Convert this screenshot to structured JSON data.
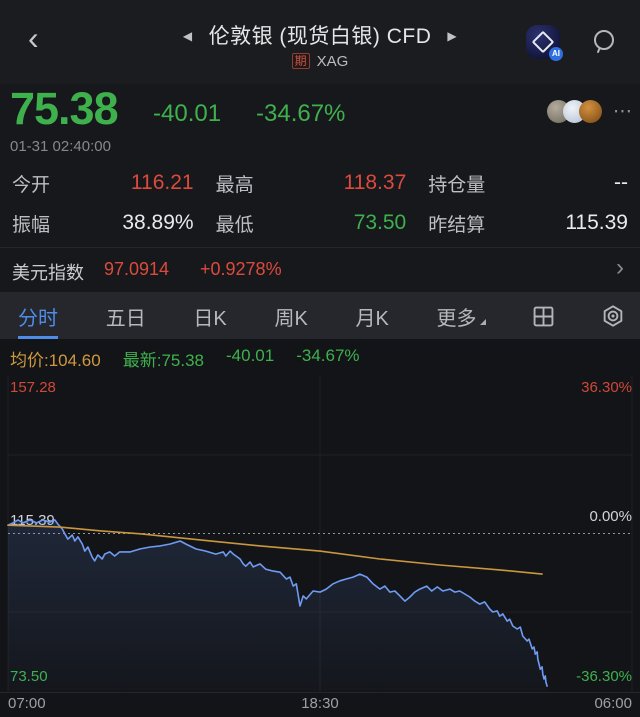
{
  "header": {
    "title": "伦敦银 (现货白银) CFD",
    "badge": "期",
    "symbol": "XAG",
    "ai_badge": "AI"
  },
  "icons": {
    "back": "‹",
    "prev": "◀",
    "next": "▶",
    "more_dots": "⋯",
    "chevron_right": "›"
  },
  "quote": {
    "price": "75.38",
    "change": "-40.01",
    "change_pct": "-34.67%",
    "timestamp": "01-31 02:40:00"
  },
  "stats": [
    {
      "label": "今开",
      "value": "116.21"
    },
    {
      "label": "最高",
      "value": "118.37"
    },
    {
      "label": "持仓量",
      "value": "--"
    },
    {
      "label": "振幅",
      "value": "38.89%"
    },
    {
      "label": "最低",
      "value": "73.50"
    },
    {
      "label": "昨结算",
      "value": "115.39"
    }
  ],
  "usd_index": {
    "label": "美元指数",
    "value": "97.0914",
    "change_pct": "+0.9278%"
  },
  "tabs": [
    {
      "label": "分时",
      "active": true
    },
    {
      "label": "五日",
      "active": false
    },
    {
      "label": "日K",
      "active": false
    },
    {
      "label": "周K",
      "active": false
    },
    {
      "label": "月K",
      "active": false
    },
    {
      "label": "更多",
      "active": false
    }
  ],
  "legend": {
    "avg": "均价:104.60",
    "last": "最新:75.38",
    "change": "-40.01",
    "change_pct": "-34.67%"
  },
  "colors": {
    "up_red": "#dc4a3d",
    "down_green": "#3eb14d",
    "avg_orange": "#cf9a3f",
    "price_line_blue": "#6f9bf3",
    "tab_active_blue": "#4e8ce8"
  },
  "chart_data": {
    "type": "line",
    "ylim": [
      73.5,
      157.28
    ],
    "baseline": 115.39,
    "y_axis_left": [
      "157.28",
      "115.39",
      "73.50"
    ],
    "y_axis_right": [
      "36.30%",
      "0.00%",
      "-36.30%"
    ],
    "x_axis": [
      "07:00",
      "18:30",
      "06:00"
    ],
    "series": [
      {
        "name": "price",
        "color": "#6f9bf3",
        "area": true,
        "points": [
          [
            0.0,
            117.6
          ],
          [
            0.008,
            118.2
          ],
          [
            0.016,
            119.0
          ],
          [
            0.024,
            118.2
          ],
          [
            0.035,
            119.0
          ],
          [
            0.046,
            118.2
          ],
          [
            0.056,
            119.0
          ],
          [
            0.067,
            118.4
          ],
          [
            0.075,
            119.0
          ],
          [
            0.08,
            117.9
          ],
          [
            0.087,
            116.6
          ],
          [
            0.091,
            115.3
          ],
          [
            0.096,
            113.9
          ],
          [
            0.103,
            115.0
          ],
          [
            0.107,
            113.4
          ],
          [
            0.112,
            114.5
          ],
          [
            0.119,
            112.6
          ],
          [
            0.123,
            110.7
          ],
          [
            0.128,
            111.8
          ],
          [
            0.135,
            109.1
          ],
          [
            0.139,
            108.1
          ],
          [
            0.144,
            109.7
          ],
          [
            0.151,
            108.6
          ],
          [
            0.155,
            109.9
          ],
          [
            0.163,
            110.5
          ],
          [
            0.171,
            109.4
          ],
          [
            0.179,
            110.5
          ],
          [
            0.196,
            110.5
          ],
          [
            0.212,
            111.3
          ],
          [
            0.228,
            111.8
          ],
          [
            0.244,
            112.1
          ],
          [
            0.26,
            112.6
          ],
          [
            0.276,
            113.4
          ],
          [
            0.285,
            112.6
          ],
          [
            0.301,
            111.3
          ],
          [
            0.317,
            110.7
          ],
          [
            0.333,
            109.9
          ],
          [
            0.345,
            110.5
          ],
          [
            0.349,
            109.4
          ],
          [
            0.356,
            110.7
          ],
          [
            0.361,
            109.9
          ],
          [
            0.372,
            108.6
          ],
          [
            0.377,
            107.3
          ],
          [
            0.381,
            106.7
          ],
          [
            0.388,
            107.8
          ],
          [
            0.393,
            106.5
          ],
          [
            0.404,
            107.3
          ],
          [
            0.413,
            105.9
          ],
          [
            0.425,
            105.4
          ],
          [
            0.436,
            105.1
          ],
          [
            0.446,
            103.3
          ],
          [
            0.452,
            103.8
          ],
          [
            0.457,
            101.4
          ],
          [
            0.462,
            102.0
          ],
          [
            0.468,
            96.1
          ],
          [
            0.473,
            98.8
          ],
          [
            0.478,
            98.0
          ],
          [
            0.489,
            100.1
          ],
          [
            0.5,
            99.8
          ],
          [
            0.51,
            100.6
          ],
          [
            0.521,
            102.0
          ],
          [
            0.532,
            102.8
          ],
          [
            0.542,
            103.3
          ],
          [
            0.553,
            103.8
          ],
          [
            0.564,
            104.6
          ],
          [
            0.575,
            103.8
          ],
          [
            0.585,
            102.0
          ],
          [
            0.596,
            100.6
          ],
          [
            0.604,
            101.4
          ],
          [
            0.612,
            99.8
          ],
          [
            0.62,
            100.1
          ],
          [
            0.628,
            98.8
          ],
          [
            0.636,
            97.4
          ],
          [
            0.644,
            98.5
          ],
          [
            0.652,
            99.8
          ],
          [
            0.66,
            100.6
          ],
          [
            0.671,
            101.4
          ],
          [
            0.679,
            100.1
          ],
          [
            0.688,
            101.2
          ],
          [
            0.697,
            100.1
          ],
          [
            0.708,
            100.6
          ],
          [
            0.716,
            99.8
          ],
          [
            0.724,
            100.1
          ],
          [
            0.732,
            99.3
          ],
          [
            0.74,
            98.5
          ],
          [
            0.748,
            97.4
          ],
          [
            0.756,
            96.6
          ],
          [
            0.764,
            97.2
          ],
          [
            0.772,
            95.3
          ],
          [
            0.777,
            94.5
          ],
          [
            0.784,
            94.8
          ],
          [
            0.788,
            93.4
          ],
          [
            0.793,
            94.0
          ],
          [
            0.8,
            92.1
          ],
          [
            0.804,
            92.6
          ],
          [
            0.809,
            90.8
          ],
          [
            0.816,
            90.0
          ],
          [
            0.821,
            90.5
          ],
          [
            0.825,
            88.1
          ],
          [
            0.832,
            86.8
          ],
          [
            0.835,
            87.3
          ],
          [
            0.84,
            84.7
          ],
          [
            0.843,
            85.2
          ],
          [
            0.845,
            83.3
          ],
          [
            0.848,
            83.9
          ],
          [
            0.849,
            82.0
          ],
          [
            0.853,
            79.3
          ],
          [
            0.856,
            79.9
          ],
          [
            0.857,
            78.0
          ],
          [
            0.859,
            76.7
          ],
          [
            0.861,
            77.5
          ],
          [
            0.862,
            75.9
          ],
          [
            0.864,
            74.8
          ]
        ]
      },
      {
        "name": "average",
        "color": "#c9973d",
        "area": false,
        "points": [
          [
            0.0,
            117.6
          ],
          [
            0.083,
            117.1
          ],
          [
            0.147,
            116.1
          ],
          [
            0.212,
            115.3
          ],
          [
            0.308,
            113.7
          ],
          [
            0.404,
            112.1
          ],
          [
            0.5,
            110.7
          ],
          [
            0.596,
            108.6
          ],
          [
            0.692,
            107.0
          ],
          [
            0.788,
            105.7
          ],
          [
            0.856,
            104.6
          ]
        ]
      }
    ]
  }
}
